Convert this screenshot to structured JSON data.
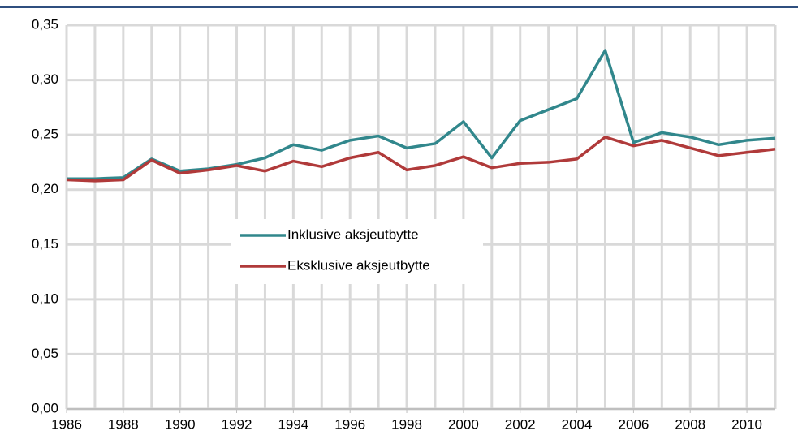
{
  "chart_data": {
    "type": "line",
    "x": [
      1986,
      1987,
      1988,
      1989,
      1990,
      1991,
      1992,
      1993,
      1994,
      1995,
      1996,
      1997,
      1998,
      1999,
      2000,
      2001,
      2002,
      2003,
      2004,
      2005,
      2006,
      2007,
      2008,
      2009,
      2010,
      2011
    ],
    "series": [
      {
        "name": "Inklusive aksjeutbytte",
        "color": "#31878c",
        "values": [
          0.21,
          0.21,
          0.211,
          0.228,
          0.217,
          0.219,
          0.223,
          0.229,
          0.241,
          0.236,
          0.245,
          0.249,
          0.238,
          0.242,
          0.262,
          0.229,
          0.263,
          0.273,
          0.283,
          0.327,
          0.243,
          0.252,
          0.248,
          0.241,
          0.245,
          0.247
        ]
      },
      {
        "name": "Eksklusive aksjeutbytte",
        "color": "#b03a3a",
        "values": [
          0.209,
          0.208,
          0.209,
          0.227,
          0.215,
          0.218,
          0.222,
          0.217,
          0.226,
          0.221,
          0.229,
          0.234,
          0.218,
          0.222,
          0.23,
          0.22,
          0.224,
          0.225,
          0.228,
          0.248,
          0.24,
          0.245,
          0.238,
          0.231,
          0.234,
          0.237
        ]
      }
    ],
    "xlim": [
      1986,
      2011
    ],
    "xticks": [
      1986,
      1988,
      1990,
      1992,
      1994,
      1996,
      1998,
      2000,
      2002,
      2004,
      2006,
      2008,
      2010
    ],
    "ylim": [
      0,
      0.35
    ],
    "yticks": [
      {
        "value": 0,
        "label": "0,00"
      },
      {
        "value": 0.05,
        "label": "0,05"
      },
      {
        "value": 0.1,
        "label": "0,10"
      },
      {
        "value": 0.15,
        "label": "0,15"
      },
      {
        "value": 0.2,
        "label": "0,20"
      },
      {
        "value": 0.25,
        "label": "0,25"
      },
      {
        "value": 0.3,
        "label": "0,30"
      },
      {
        "value": 0.35,
        "label": "0,35"
      }
    ],
    "grid": true
  }
}
